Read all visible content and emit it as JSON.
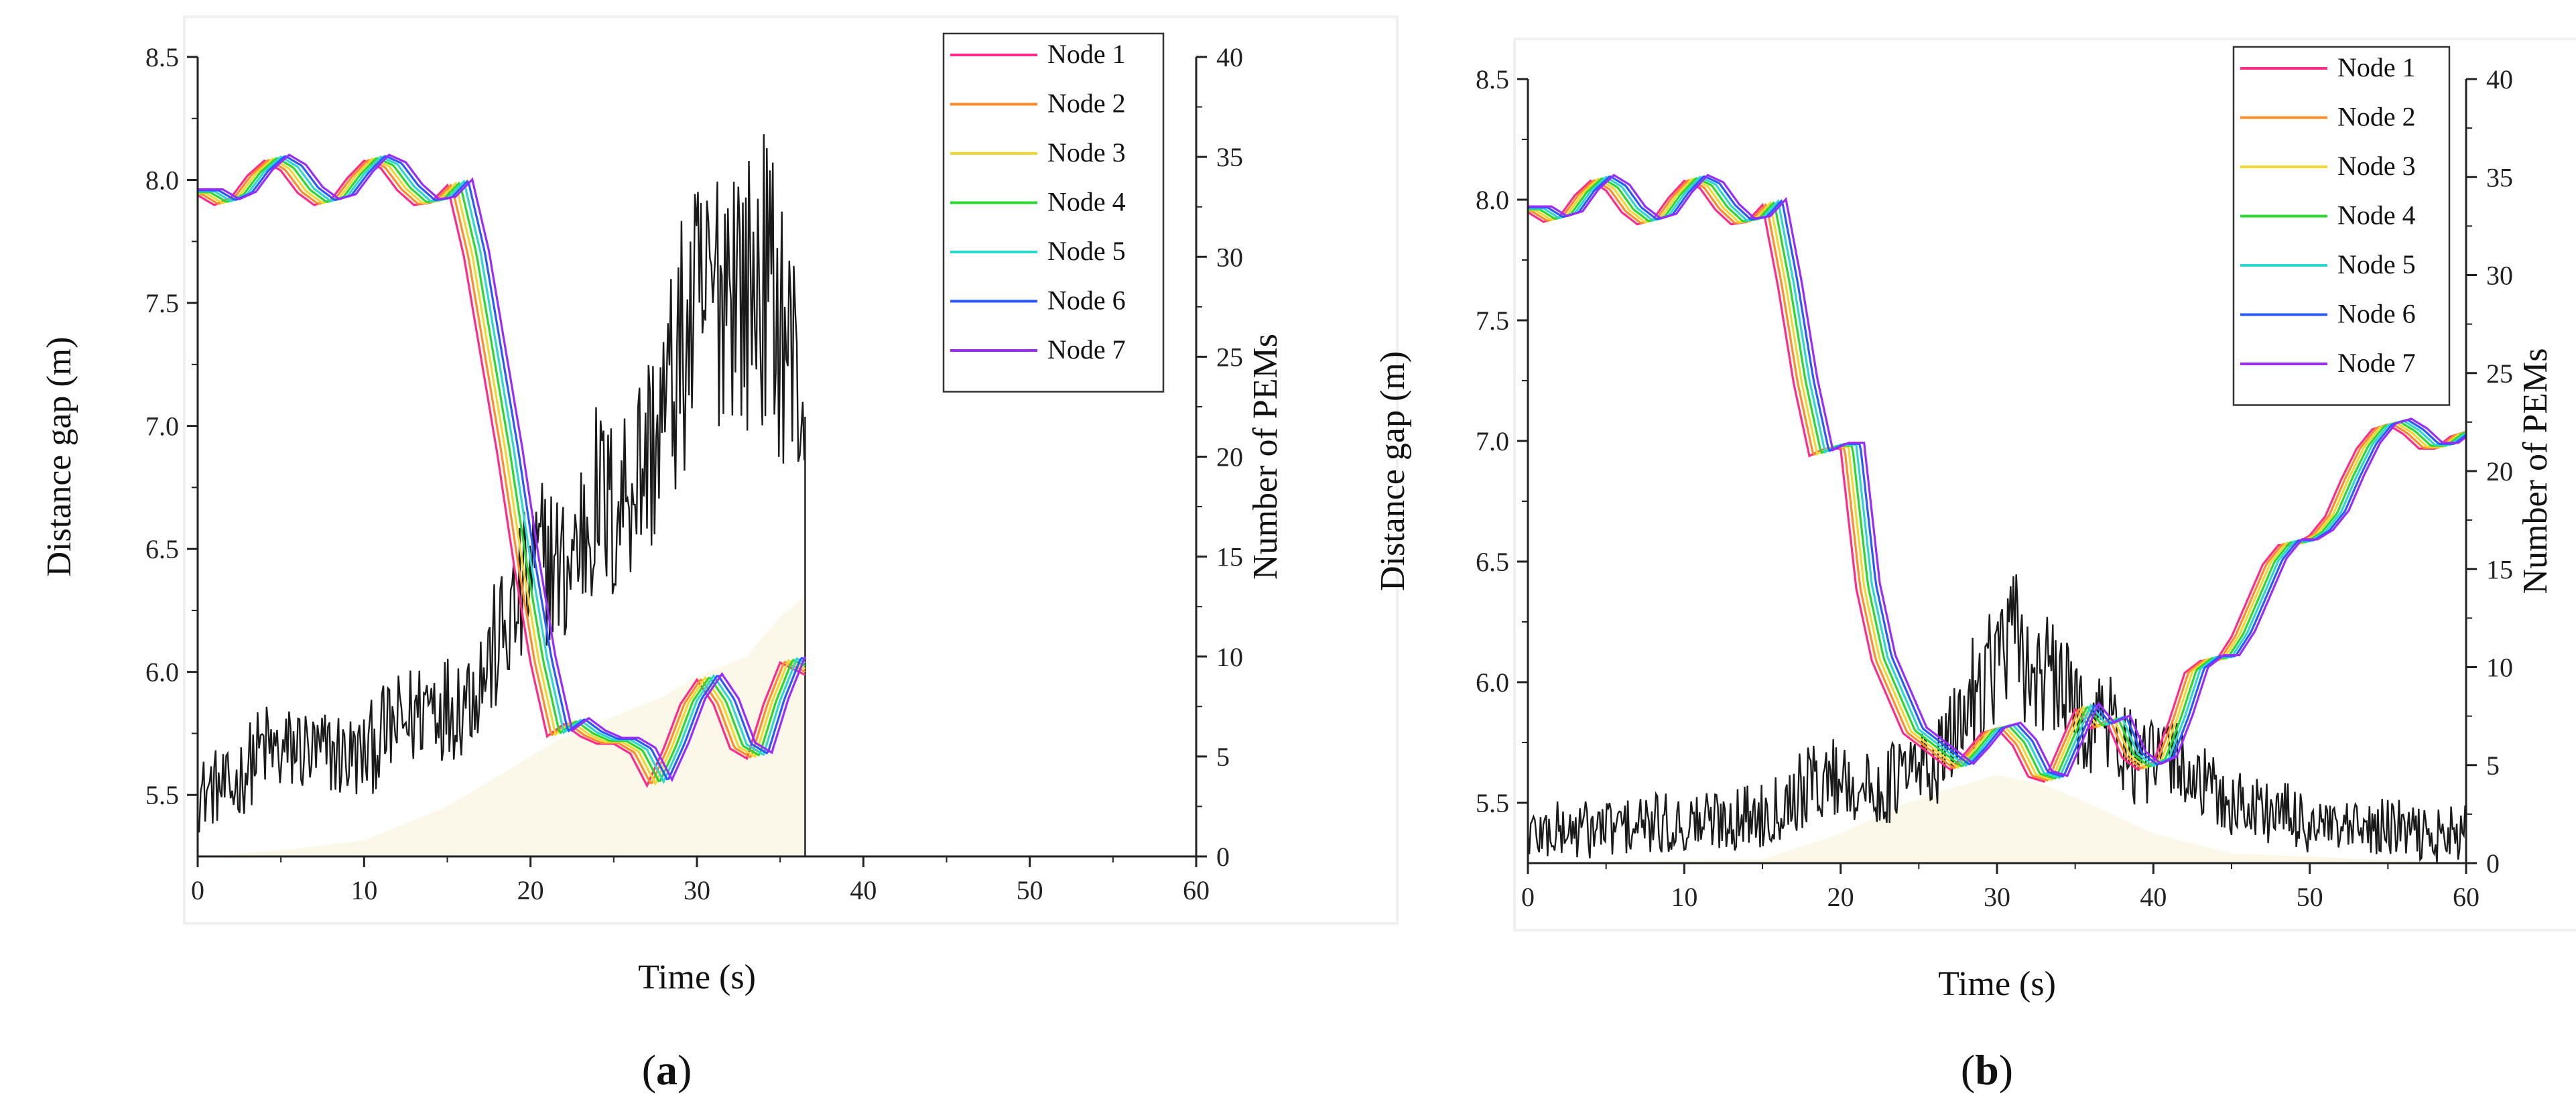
{
  "colors": {
    "pem": "#1a1a1a",
    "fill": "#fbf8ea",
    "nodes": [
      "#ff2a8a",
      "#ff8c2a",
      "#f0d830",
      "#2ad830",
      "#2ad8d0",
      "#2a5aff",
      "#9a2aff"
    ]
  },
  "chart_data": [
    {
      "panel": "a",
      "type": "line",
      "label_open": "(",
      "label_letter": "a",
      "label_close": ")",
      "xlabel": "Time (s)",
      "ylabel": "Distance gap (m)",
      "y2label": "Number of PEMs",
      "xlim": [
        0,
        60
      ],
      "ylim": [
        5.25,
        8.5
      ],
      "y2lim": [
        0,
        40
      ],
      "xticks": [
        "0",
        "10",
        "20",
        "30",
        "40",
        "50",
        "60"
      ],
      "yticks": [
        "5.5",
        "6.0",
        "6.5",
        "7.0",
        "7.5",
        "8.0",
        "8.5"
      ],
      "y2ticks": [
        "0",
        "5",
        "10",
        "15",
        "20",
        "25",
        "30",
        "35",
        "40"
      ],
      "legend": [
        "Node 1",
        "Node 2",
        "Node 3",
        "Node 4",
        "Node 5",
        "Node 6",
        "Node 7"
      ],
      "node_lag_s": 0.25,
      "node_base": [
        [
          0,
          7.95
        ],
        [
          1,
          7.91
        ],
        [
          2,
          7.94
        ],
        [
          3,
          8.03
        ],
        [
          4,
          8.09
        ],
        [
          5,
          8.05
        ],
        [
          6,
          7.96
        ],
        [
          7,
          7.91
        ],
        [
          8,
          7.93
        ],
        [
          9,
          8.02
        ],
        [
          10,
          8.09
        ],
        [
          11,
          8.06
        ],
        [
          12,
          7.97
        ],
        [
          13,
          7.91
        ],
        [
          14,
          7.92
        ],
        [
          15,
          7.99
        ],
        [
          16,
          7.7
        ],
        [
          17,
          7.3
        ],
        [
          18,
          6.9
        ],
        [
          19,
          6.45
        ],
        [
          20,
          6.05
        ],
        [
          21,
          5.75
        ],
        [
          22,
          5.8
        ],
        [
          23,
          5.75
        ],
        [
          24,
          5.72
        ],
        [
          25,
          5.72
        ],
        [
          26,
          5.68
        ],
        [
          27,
          5.55
        ],
        [
          28,
          5.7
        ],
        [
          29,
          5.88
        ],
        [
          30,
          5.98
        ],
        [
          31,
          5.88
        ],
        [
          32,
          5.7
        ],
        [
          33,
          5.66
        ],
        [
          34,
          5.88
        ],
        [
          35,
          6.05
        ],
        [
          36.5,
          6.0
        ]
      ],
      "pem_series": [
        [
          0,
          3
        ],
        [
          1,
          3.5
        ],
        [
          2,
          3.2
        ],
        [
          3,
          4.5
        ],
        [
          4,
          5.5
        ],
        [
          5,
          5
        ],
        [
          6,
          5.5
        ],
        [
          7,
          5
        ],
        [
          8,
          5.2
        ],
        [
          9,
          5
        ],
        [
          10,
          5
        ],
        [
          11,
          6
        ],
        [
          12,
          6.5
        ],
        [
          13,
          7
        ],
        [
          14,
          8
        ],
        [
          15,
          7.5
        ],
        [
          16,
          8
        ],
        [
          17,
          9
        ],
        [
          18,
          10.5
        ],
        [
          19,
          12
        ],
        [
          20,
          14
        ],
        [
          21,
          15
        ],
        [
          22,
          14
        ],
        [
          23,
          16
        ],
        [
          24,
          18
        ],
        [
          25,
          17
        ],
        [
          26,
          19
        ],
        [
          27,
          20
        ],
        [
          28,
          22
        ],
        [
          29,
          25
        ],
        [
          30,
          27
        ],
        [
          31,
          28
        ],
        [
          32,
          30
        ],
        [
          33,
          28
        ],
        [
          34,
          29
        ],
        [
          35,
          27
        ],
        [
          36,
          24
        ],
        [
          36.5,
          22
        ]
      ],
      "fill_series": [
        [
          0,
          0
        ],
        [
          5,
          0.3
        ],
        [
          10,
          0.8
        ],
        [
          15,
          2.5
        ],
        [
          20,
          5
        ],
        [
          22,
          6
        ],
        [
          25,
          7
        ],
        [
          28,
          8
        ],
        [
          30,
          9
        ],
        [
          33,
          10
        ],
        [
          35,
          12
        ],
        [
          36.5,
          13
        ]
      ]
    },
    {
      "panel": "b",
      "type": "line",
      "label_open": "(",
      "label_letter": "b",
      "label_close": ")",
      "xlabel": "Time (s)",
      "ylabel": "Distance gap (m)",
      "y2label": "Number of PEMs",
      "xlim": [
        0,
        60
      ],
      "ylim": [
        5.25,
        8.5
      ],
      "y2lim": [
        0,
        40
      ],
      "xticks": [
        "0",
        "10",
        "20",
        "30",
        "40",
        "50",
        "60"
      ],
      "yticks": [
        "5.5",
        "6.0",
        "6.5",
        "7.0",
        "7.5",
        "8.0",
        "8.5"
      ],
      "y2ticks": [
        "0",
        "5",
        "10",
        "15",
        "20",
        "25",
        "30",
        "35",
        "40"
      ],
      "legend": [
        "Node 1",
        "Node 2",
        "Node 3",
        "Node 4",
        "Node 5",
        "Node 6",
        "Node 7"
      ],
      "node_lag_s": 0.25,
      "node_base": [
        [
          0,
          7.96
        ],
        [
          1,
          7.92
        ],
        [
          2,
          7.94
        ],
        [
          3,
          8.03
        ],
        [
          4,
          8.09
        ],
        [
          5,
          8.05
        ],
        [
          6,
          7.96
        ],
        [
          7,
          7.91
        ],
        [
          8,
          7.93
        ],
        [
          9,
          8.02
        ],
        [
          10,
          8.09
        ],
        [
          11,
          8.06
        ],
        [
          12,
          7.97
        ],
        [
          13,
          7.91
        ],
        [
          14,
          7.92
        ],
        [
          15,
          7.99
        ],
        [
          16,
          7.65
        ],
        [
          17,
          7.25
        ],
        [
          18,
          6.95
        ],
        [
          19,
          6.98
        ],
        [
          20,
          6.98
        ],
        [
          21,
          6.4
        ],
        [
          22,
          6.1
        ],
        [
          23,
          5.95
        ],
        [
          24,
          5.8
        ],
        [
          25,
          5.75
        ],
        [
          26,
          5.7
        ],
        [
          27,
          5.65
        ],
        [
          28,
          5.72
        ],
        [
          29,
          5.8
        ],
        [
          30,
          5.82
        ],
        [
          31,
          5.75
        ],
        [
          32,
          5.62
        ],
        [
          33,
          5.6
        ],
        [
          34,
          5.75
        ],
        [
          35,
          5.9
        ],
        [
          36,
          5.82
        ],
        [
          37,
          5.85
        ],
        [
          38,
          5.7
        ],
        [
          39,
          5.65
        ],
        [
          40,
          5.68
        ],
        [
          41,
          5.85
        ],
        [
          42,
          6.05
        ],
        [
          43,
          6.1
        ],
        [
          44,
          6.1
        ],
        [
          45,
          6.2
        ],
        [
          46,
          6.35
        ],
        [
          47,
          6.5
        ],
        [
          48,
          6.58
        ],
        [
          49,
          6.58
        ],
        [
          50,
          6.62
        ],
        [
          51,
          6.7
        ],
        [
          52,
          6.85
        ],
        [
          53,
          6.98
        ],
        [
          54,
          7.06
        ],
        [
          55,
          7.08
        ],
        [
          56,
          7.04
        ],
        [
          57,
          6.98
        ],
        [
          58,
          6.98
        ],
        [
          59,
          7.03
        ],
        [
          60,
          7.05
        ]
      ],
      "pem_series": [
        [
          0,
          1.5
        ],
        [
          5,
          1.8
        ],
        [
          10,
          2
        ],
        [
          15,
          2.5
        ],
        [
          18,
          4
        ],
        [
          20,
          4.5
        ],
        [
          22,
          3.5
        ],
        [
          24,
          4.5
        ],
        [
          26,
          5
        ],
        [
          27,
          6
        ],
        [
          28,
          8
        ],
        [
          29,
          9.5
        ],
        [
          30,
          10.5
        ],
        [
          31,
          11.5
        ],
        [
          32,
          10
        ],
        [
          33,
          9.5
        ],
        [
          34,
          9
        ],
        [
          35,
          8
        ],
        [
          36,
          7
        ],
        [
          37,
          7.5
        ],
        [
          38,
          6
        ],
        [
          39,
          5
        ],
        [
          40,
          5
        ],
        [
          41,
          5.5
        ],
        [
          42,
          5
        ],
        [
          43,
          4
        ],
        [
          45,
          3
        ],
        [
          47,
          2.8
        ],
        [
          50,
          2
        ],
        [
          52,
          1.5
        ],
        [
          55,
          1.8
        ],
        [
          58,
          1.3
        ],
        [
          60,
          1.5
        ]
      ],
      "fill_series": [
        [
          0,
          0
        ],
        [
          15,
          0.2
        ],
        [
          20,
          1.5
        ],
        [
          24,
          3
        ],
        [
          27,
          3.8
        ],
        [
          30,
          4.5
        ],
        [
          33,
          4
        ],
        [
          36,
          3
        ],
        [
          40,
          1.5
        ],
        [
          45,
          0.5
        ],
        [
          60,
          0
        ]
      ]
    }
  ]
}
